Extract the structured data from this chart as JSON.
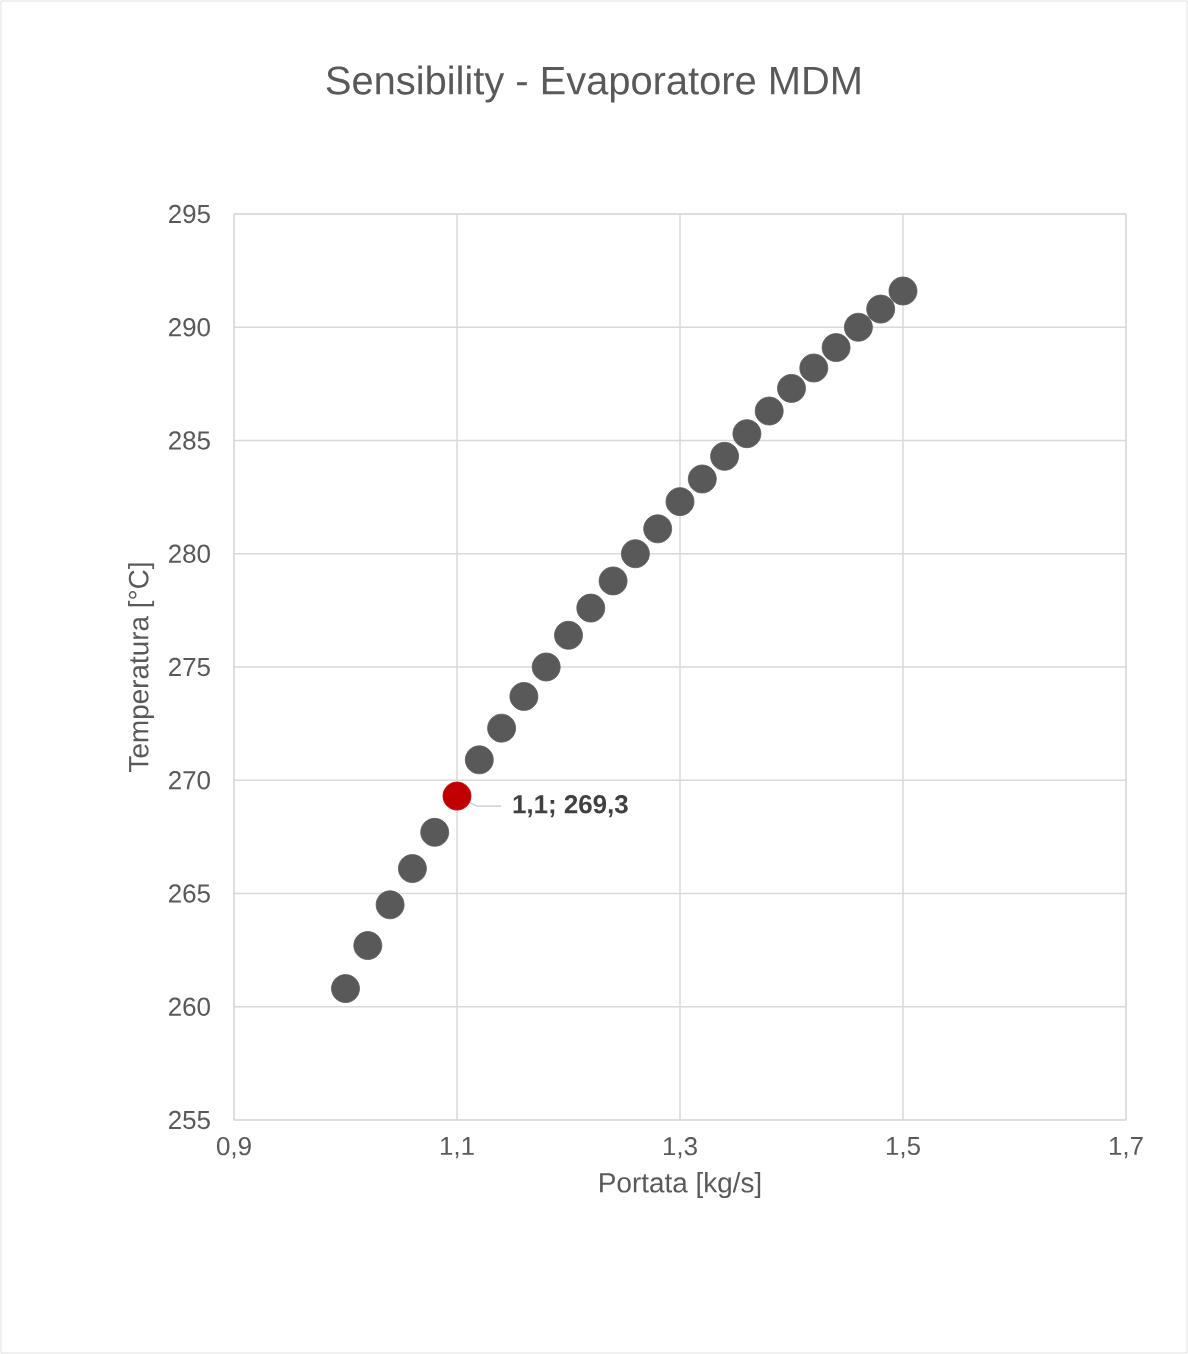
{
  "chart_data": {
    "type": "scatter",
    "title": "Sensibility - Evaporatore MDM",
    "xlabel": "Portata [kg/s]",
    "ylabel": "Temperatura [°C]",
    "xlim": [
      0.9,
      1.7
    ],
    "xticks": [
      {
        "value": 0.9,
        "label": "0,9"
      },
      {
        "value": 1.1,
        "label": "1,1"
      },
      {
        "value": 1.3,
        "label": "1,3"
      },
      {
        "value": 1.5,
        "label": "1,5"
      },
      {
        "value": 1.7,
        "label": "1,7"
      }
    ],
    "ylim": [
      255,
      295
    ],
    "yticks": [
      255,
      260,
      265,
      270,
      275,
      280,
      285,
      290,
      295
    ],
    "grid": true,
    "marker": "circle",
    "series": [
      {
        "color": "#595959",
        "x": [
          1.0,
          1.02,
          1.04,
          1.06,
          1.08,
          1.12,
          1.14,
          1.16,
          1.18,
          1.2,
          1.22,
          1.24,
          1.26,
          1.28,
          1.3,
          1.32,
          1.34,
          1.36,
          1.38,
          1.4,
          1.42,
          1.44,
          1.46,
          1.48,
          1.5
        ],
        "values": [
          260.8,
          262.7,
          264.5,
          266.1,
          267.7,
          270.9,
          272.3,
          273.7,
          275.0,
          276.4,
          277.6,
          278.8,
          280.0,
          281.1,
          282.3,
          283.3,
          284.3,
          285.3,
          286.3,
          287.3,
          288.2,
          289.1,
          290.0,
          290.8,
          291.6
        ]
      },
      {
        "color": "#c00000",
        "x": [
          1.1
        ],
        "values": [
          269.3
        ],
        "value_labels": [
          "1,1; 269,3"
        ]
      }
    ]
  }
}
